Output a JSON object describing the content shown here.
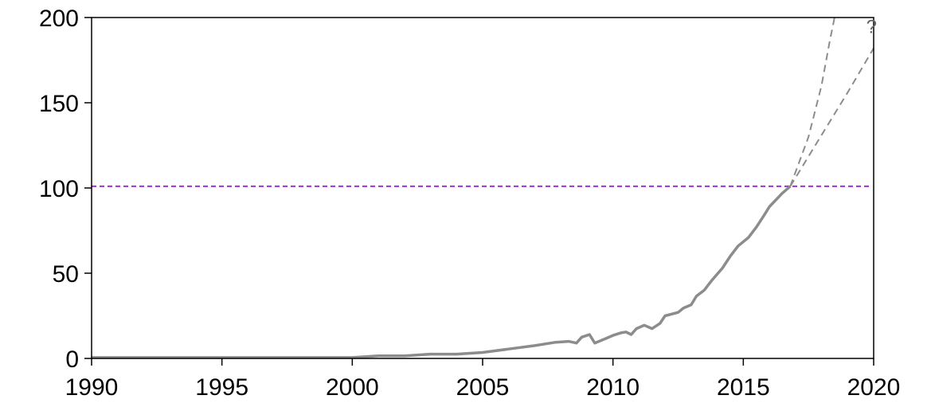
{
  "chart_data": {
    "type": "line",
    "title": "",
    "xlabel": "",
    "ylabel": "",
    "xlim": [
      1990,
      2020
    ],
    "ylim": [
      0,
      200
    ],
    "x_ticks": [
      "1990",
      "1995",
      "2000",
      "2005",
      "2010",
      "2015",
      "2020"
    ],
    "y_ticks": [
      "0",
      "50",
      "100",
      "150",
      "200"
    ],
    "grid": false,
    "legend": "none",
    "series": [
      {
        "style": "solid",
        "color": "#8c8c8c",
        "points": [
          [
            1990,
            0.5
          ],
          [
            1992,
            0.5
          ],
          [
            1994,
            0.5
          ],
          [
            1996,
            0.5
          ],
          [
            1998,
            0.5
          ],
          [
            2000,
            0.5
          ],
          [
            2001,
            1.5
          ],
          [
            2002,
            1.5
          ],
          [
            2003,
            2.5
          ],
          [
            2004,
            2.5
          ],
          [
            2005,
            3.5
          ],
          [
            2006,
            5.5
          ],
          [
            2007,
            7.5
          ],
          [
            2007.8,
            9.5
          ],
          [
            2008.3,
            10
          ],
          [
            2008.6,
            9
          ],
          [
            2008.8,
            12.5
          ],
          [
            2009.1,
            14
          ],
          [
            2009.3,
            9
          ],
          [
            2009.7,
            11.5
          ],
          [
            2010,
            13.5
          ],
          [
            2010.3,
            15
          ],
          [
            2010.5,
            15.5
          ],
          [
            2010.7,
            14
          ],
          [
            2010.9,
            17.5
          ],
          [
            2011.2,
            19.5
          ],
          [
            2011.5,
            17.5
          ],
          [
            2011.8,
            20.5
          ],
          [
            2012,
            25
          ],
          [
            2012.5,
            27
          ],
          [
            2012.7,
            29.5
          ],
          [
            2013,
            31.5
          ],
          [
            2013.2,
            36.5
          ],
          [
            2013.5,
            40
          ],
          [
            2013.8,
            46
          ],
          [
            2014.2,
            53
          ],
          [
            2014.5,
            60
          ],
          [
            2014.8,
            66
          ],
          [
            2015.2,
            71
          ],
          [
            2015.5,
            77
          ],
          [
            2015.8,
            84
          ],
          [
            2016,
            89
          ],
          [
            2016.5,
            97
          ],
          [
            2016.8,
            101
          ]
        ]
      },
      {
        "style": "dashed",
        "color": "#8c8c8c",
        "points": [
          [
            2016.8,
            101
          ],
          [
            2017.5,
            130
          ],
          [
            2018,
            160
          ],
          [
            2018.3,
            185
          ],
          [
            2018.5,
            200
          ]
        ]
      },
      {
        "style": "dashed",
        "color": "#8c8c8c",
        "points": [
          [
            2016.8,
            101
          ],
          [
            2018,
            131
          ],
          [
            2019,
            156
          ],
          [
            2020,
            182
          ]
        ]
      }
    ],
    "reference_lines": [
      {
        "axis": "y",
        "value": 101,
        "color": "#9b30e6",
        "style": "dashed"
      }
    ],
    "annotations": [
      {
        "text": "?",
        "x": 2019,
        "y": 188
      }
    ]
  }
}
